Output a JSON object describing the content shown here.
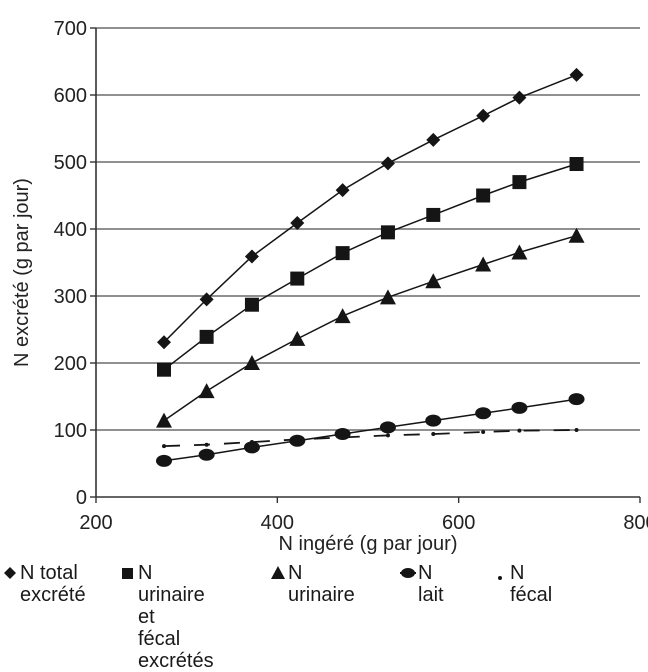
{
  "chart_data": {
    "type": "line",
    "title": "",
    "xlabel": "N ingéré (g par jour)",
    "ylabel": "N excrété (g par jour)",
    "xlim": [
      200,
      800
    ],
    "ylim": [
      0,
      700
    ],
    "xticks": [
      200,
      400,
      600,
      800
    ],
    "yticks": [
      0,
      100,
      200,
      300,
      400,
      500,
      600,
      700
    ],
    "grid": "horizontal",
    "legend_position": "bottom",
    "colors": {
      "series": "#151515",
      "grid": "#6b6b6b",
      "axis": "#333333",
      "text": "#222222"
    },
    "series": [
      {
        "name": "N total\nexcrété",
        "marker": "diamond",
        "x": [
          275,
          322,
          372,
          422,
          472,
          522,
          572,
          627,
          667,
          730
        ],
        "y": [
          231,
          295,
          359,
          409,
          458,
          498,
          533,
          569,
          596,
          630
        ]
      },
      {
        "name": "N urinaire et\nfécal excrétés",
        "marker": "square",
        "x": [
          275,
          322,
          372,
          422,
          472,
          522,
          572,
          627,
          667,
          730
        ],
        "y": [
          190,
          239,
          287,
          326,
          364,
          395,
          421,
          450,
          470,
          497
        ]
      },
      {
        "name": "N urinaire",
        "marker": "triangle",
        "x": [
          275,
          322,
          372,
          422,
          472,
          522,
          572,
          627,
          667,
          730
        ],
        "y": [
          114,
          158,
          200,
          236,
          270,
          298,
          322,
          347,
          365,
          390
        ]
      },
      {
        "name": "N lait",
        "marker": "circle",
        "x": [
          275,
          322,
          372,
          422,
          472,
          522,
          572,
          627,
          667,
          730
        ],
        "y": [
          54,
          63,
          74,
          84,
          94,
          104,
          114,
          125,
          133,
          146
        ]
      },
      {
        "name": "N fécal",
        "marker": "dot",
        "x": [
          275,
          322,
          372,
          422,
          472,
          522,
          572,
          627,
          667,
          730
        ],
        "y": [
          76,
          78,
          82,
          86,
          89,
          92,
          94,
          97,
          99,
          100
        ]
      }
    ]
  }
}
